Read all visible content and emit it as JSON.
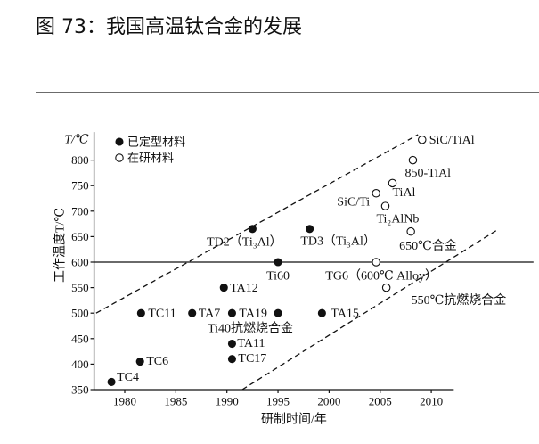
{
  "page": {
    "figure_title": "图 73：我国高温钛合金的发展"
  },
  "chart_data": {
    "type": "scatter",
    "y_unit_label": "T/℃",
    "ylabel": "工作温度T/℃",
    "xlabel": "研制时间/年",
    "xlim": [
      1977,
      2012.2
    ],
    "ylim": [
      350,
      855
    ],
    "xticks": [
      1980,
      1985,
      1990,
      1995,
      2000,
      2005,
      2010
    ],
    "yticks": [
      350,
      400,
      450,
      500,
      550,
      600,
      650,
      700,
      750,
      800
    ],
    "grid": false,
    "legend": {
      "position": "top-left"
    },
    "series": [
      {
        "name": "已定型材料",
        "marker": "filled-circle",
        "points": [
          {
            "label": "TC4",
            "x": 1978.7,
            "y": 365
          },
          {
            "label": "TC6",
            "x": 1981.5,
            "y": 405
          },
          {
            "label": "TC11",
            "x": 1981.6,
            "y": 500
          },
          {
            "label": "TA7",
            "x": 1986.6,
            "y": 500
          },
          {
            "label": "TA12",
            "x": 1989.7,
            "y": 550
          },
          {
            "label": "TA19",
            "x": 1990.5,
            "y": 500
          },
          {
            "label": "Ti40抗燃烧合金",
            "x": 1995.0,
            "y": 500
          },
          {
            "label": "TA11",
            "x": 1990.5,
            "y": 440
          },
          {
            "label": "TC17",
            "x": 1990.5,
            "y": 410
          },
          {
            "label": "TA15",
            "x": 1999.3,
            "y": 500
          },
          {
            "label": "Ti60",
            "x": 1995.0,
            "y": 600
          },
          {
            "label": "TD2（Ti₃Al）",
            "x": 1992.5,
            "y": 665
          },
          {
            "label": "TD3（Ti₃Al）",
            "x": 1998.1,
            "y": 665
          }
        ]
      },
      {
        "name": "在研材料",
        "marker": "open-circle",
        "points": [
          {
            "label": "TG6（600℃ Alloy）",
            "x": 2004.6,
            "y": 600
          },
          {
            "label": "550℃抗燃烧合金",
            "x": 2005.6,
            "y": 550
          },
          {
            "label": "SiC/Ti",
            "x": 2004.6,
            "y": 735
          },
          {
            "label": "TiAl",
            "x": 2006.2,
            "y": 755
          },
          {
            "label": "Ti₂AlNb",
            "x": 2005.5,
            "y": 710
          },
          {
            "label": "650℃合金",
            "x": 2008.0,
            "y": 660
          },
          {
            "label": "850-TiAl",
            "x": 2008.2,
            "y": 800
          },
          {
            "label": "SiC/TiAl",
            "x": 2009.1,
            "y": 840
          }
        ]
      }
    ],
    "reference_lines": [
      {
        "style": "solid",
        "from": [
          1977,
          600
        ],
        "to": [
          2020,
          600
        ]
      },
      {
        "style": "dashed",
        "from": [
          1977.2,
          500
        ],
        "to": [
          2008.7,
          850
        ]
      },
      {
        "style": "dashed",
        "from": [
          1991.5,
          350
        ],
        "to": [
          2016.6,
          665
        ]
      }
    ]
  }
}
